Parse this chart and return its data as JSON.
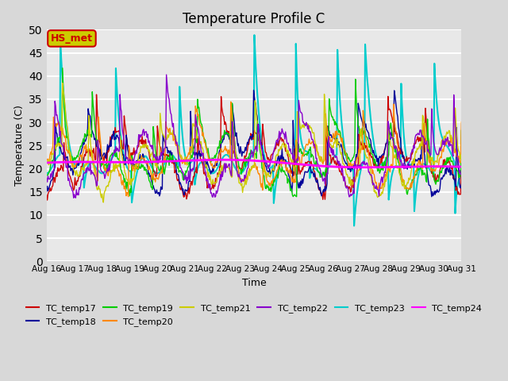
{
  "title": "Temperature Profile C",
  "xlabel": "Time",
  "ylabel": "Temperature (C)",
  "ylim": [
    0,
    50
  ],
  "xlim": [
    0,
    15
  ],
  "x_tick_labels": [
    "Aug 16",
    "Aug 17",
    "Aug 18",
    "Aug 19",
    "Aug 20",
    "Aug 21",
    "Aug 22",
    "Aug 23",
    "Aug 24",
    "Aug 25",
    "Aug 26",
    "Aug 27",
    "Aug 28",
    "Aug 29",
    "Aug 30",
    "Aug 31"
  ],
  "series_colors": {
    "TC_temp17": "#cc0000",
    "TC_temp18": "#000099",
    "TC_temp19": "#00cc00",
    "TC_temp20": "#ff8800",
    "TC_temp21": "#cccc00",
    "TC_temp22": "#8800cc",
    "TC_temp23": "#00cccc",
    "TC_temp24": "#ff00ff"
  },
  "annotation_label": "HS_met",
  "annotation_color": "#cc0000",
  "annotation_bg": "#cccc00",
  "background_color": "#e8e8e8",
  "grid_color": "#ffffff",
  "title_fontsize": 12
}
